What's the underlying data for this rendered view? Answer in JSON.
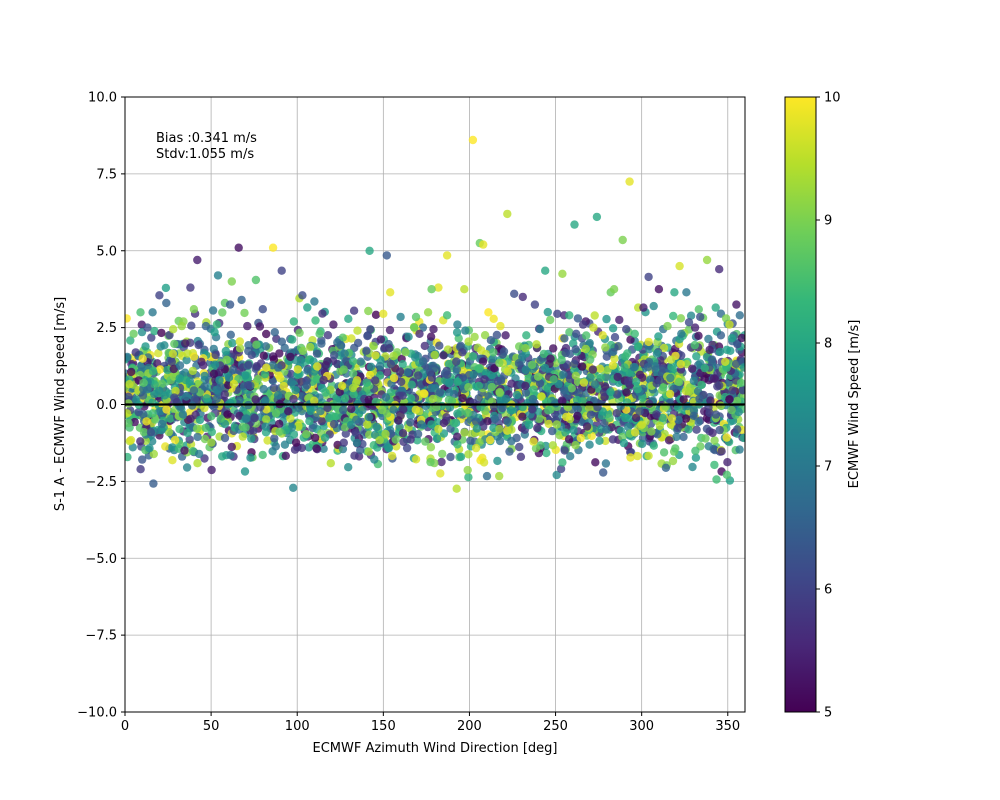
{
  "chart_data": {
    "type": "scatter",
    "xlabel": "ECMWF Azimuth Wind Direction [deg]",
    "ylabel": "S-1 A - ECMWF Wind speed [m/s]",
    "xlim": [
      0,
      360
    ],
    "ylim": [
      -10,
      10
    ],
    "x_ticks": [
      0,
      50,
      100,
      150,
      200,
      250,
      300,
      350
    ],
    "y_ticks": [
      -10.0,
      -7.5,
      -5.0,
      -2.5,
      0.0,
      2.5,
      5.0,
      7.5,
      10.0
    ],
    "x_tick_labels": [
      "0",
      "50",
      "100",
      "150",
      "200",
      "250",
      "300",
      "350"
    ],
    "y_tick_labels": [
      "−10.0",
      "−7.5",
      "−5.0",
      "−2.5",
      "0.0",
      "2.5",
      "5.0",
      "7.5",
      "10.0"
    ],
    "grid": true,
    "zero_line": 0,
    "annotations": [
      "Bias :0.341 m/s",
      "Stdv:1.055 m/s"
    ],
    "stats": {
      "bias": 0.341,
      "stdv": 1.055
    },
    "colorbar": {
      "label": "ECMWF Wind Speed [m/s]",
      "range": [
        5,
        10
      ],
      "ticks": [
        5,
        6,
        7,
        8,
        9,
        10
      ],
      "tick_labels": [
        "5",
        "6",
        "7",
        "8",
        "9",
        "10"
      ],
      "colormap": "viridis"
    },
    "point_alpha": 0.8,
    "colors": {
      "viridis": [
        "#440154",
        "#482878",
        "#3e4989",
        "#31688e",
        "#26828e",
        "#1f9e89",
        "#35b779",
        "#6ece58",
        "#b5de2b",
        "#fde725"
      ]
    },
    "points": [
      [
        202,
        8.6,
        10.0
      ],
      [
        293,
        7.25,
        9.8
      ],
      [
        222,
        6.2,
        9.5
      ],
      [
        274,
        6.1,
        8.0
      ],
      [
        261,
        5.85,
        8.0
      ],
      [
        289,
        5.35,
        9.0
      ],
      [
        206,
        5.25,
        8.8
      ],
      [
        66,
        5.1,
        5.2
      ],
      [
        86,
        5.1,
        10.0
      ],
      [
        208,
        5.2,
        9.8
      ],
      [
        42,
        4.7,
        5.4
      ],
      [
        142,
        5.0,
        8.0
      ],
      [
        152,
        4.85,
        6.4
      ],
      [
        91,
        4.35,
        6.0
      ],
      [
        187,
        4.85,
        9.8
      ],
      [
        338,
        4.7,
        9.2
      ],
      [
        345,
        4.4,
        5.6
      ],
      [
        322,
        4.5,
        9.7
      ],
      [
        244,
        4.35,
        8.0
      ],
      [
        254,
        4.25,
        9.2
      ],
      [
        54,
        4.2,
        7.2
      ],
      [
        304,
        4.15,
        6.0
      ],
      [
        62,
        4.0,
        9.0
      ],
      [
        76,
        4.05,
        8.6
      ],
      [
        182,
        3.8,
        9.8
      ],
      [
        178,
        3.75,
        8.8
      ],
      [
        197,
        3.75,
        9.5
      ],
      [
        310,
        3.75,
        5.2
      ],
      [
        319,
        3.65,
        8.0
      ],
      [
        326,
        3.65,
        7.0
      ],
      [
        38,
        3.8,
        5.8
      ],
      [
        20,
        3.55,
        6.0
      ],
      [
        154,
        3.65,
        9.8
      ],
      [
        226,
        3.6,
        6.2
      ],
      [
        282,
        3.65,
        8.8
      ],
      [
        284,
        3.75,
        9.0
      ],
      [
        103,
        3.55,
        6.2
      ],
      [
        16,
        3.0,
        7.0
      ],
      [
        9,
        3.0,
        8.5
      ],
      [
        24,
        3.3,
        6.6
      ],
      [
        40,
        3.1,
        9.0
      ],
      [
        58,
        3.3,
        8.7
      ],
      [
        61,
        3.25,
        6.4
      ],
      [
        80,
        3.1,
        6.2
      ],
      [
        110,
        3.35,
        7.0
      ],
      [
        133,
        3.05,
        5.8
      ],
      [
        150,
        2.95,
        9.8
      ],
      [
        160,
        2.85,
        7.2
      ],
      [
        176,
        3.0,
        9.2
      ],
      [
        187,
        2.9,
        8.4
      ],
      [
        211,
        3.0,
        10.0
      ],
      [
        231,
        3.5,
        5.6
      ],
      [
        238,
        3.25,
        6.0
      ],
      [
        251,
        2.95,
        6.0
      ],
      [
        255,
        2.9,
        5.6
      ],
      [
        258,
        2.9,
        8.2
      ],
      [
        263,
        2.8,
        6.4
      ],
      [
        287,
        2.75,
        5.4
      ],
      [
        298,
        3.15,
        9.5
      ],
      [
        301,
        3.15,
        5.4
      ],
      [
        307,
        3.2,
        7.4
      ],
      [
        334,
        2.85,
        6.2
      ],
      [
        343,
        3.15,
        8.0
      ],
      [
        349,
        2.8,
        9.0
      ],
      [
        355,
        3.25,
        5.3
      ],
      [
        357,
        2.9,
        6.8
      ],
      [
        1,
        2.8,
        10.0
      ],
      [
        33,
        2.55,
        9.2
      ],
      [
        47,
        2.55,
        6.6
      ],
      [
        71,
        2.55,
        5.4
      ],
      [
        98,
        2.7,
        8.2
      ],
      [
        121,
        2.6,
        5.3
      ],
      [
        135,
        2.4,
        9.5
      ],
      [
        168,
        2.5,
        8.8
      ],
      [
        193,
        2.6,
        7.2
      ],
      [
        218,
        2.55,
        9.8
      ],
      [
        241,
        2.45,
        7.0
      ],
      [
        266,
        2.6,
        5.8
      ],
      [
        272,
        2.5,
        9.6
      ],
      [
        291,
        2.45,
        6.0
      ],
      [
        315,
        2.55,
        9.0
      ],
      [
        331,
        2.5,
        5.5
      ],
      [
        351,
        2.6,
        9.6
      ],
      [
        5,
        2.3,
        8.8
      ],
      [
        13,
        2.5,
        6.2
      ],
      [
        28,
        2.45,
        9.4
      ],
      [
        52,
        2.35,
        7.8
      ],
      [
        87,
        2.35,
        6.6
      ],
      [
        113,
        2.3,
        8.6
      ],
      [
        141,
        2.25,
        6.2
      ],
      [
        171,
        2.3,
        5.6
      ],
      [
        203,
        2.2,
        9.2
      ],
      [
        233,
        2.25,
        8.2
      ],
      [
        262,
        2.3,
        6.2
      ],
      [
        296,
        2.3,
        8.4
      ],
      [
        323,
        2.3,
        7.0
      ],
      [
        346,
        2.25,
        6.5
      ]
    ]
  }
}
